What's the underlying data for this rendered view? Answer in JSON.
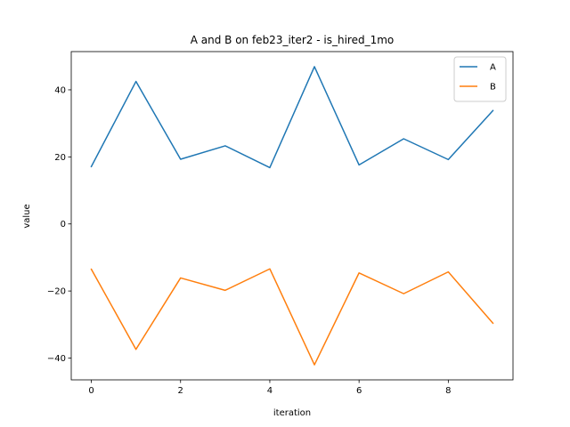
{
  "chart_data": {
    "type": "line",
    "title": "A and B on feb23_iter2 - is_hired_1mo",
    "xlabel": "iteration",
    "ylabel": "value",
    "x": [
      0,
      1,
      2,
      3,
      4,
      5,
      6,
      7,
      8,
      9
    ],
    "xlim": [
      -0.45,
      9.45
    ],
    "ylim": [
      -46.5,
      51.4
    ],
    "xticks": [
      0,
      2,
      4,
      6,
      8
    ],
    "yticks": [
      -40,
      -20,
      0,
      20,
      40
    ],
    "grid": false,
    "legend": "top-right",
    "series": [
      {
        "name": "A",
        "color": "#1f77b4",
        "values": [
          17.1,
          42.5,
          19.3,
          23.3,
          16.8,
          46.9,
          17.6,
          25.4,
          19.2,
          33.8
        ]
      },
      {
        "name": "B",
        "color": "#ff7f0e",
        "values": [
          -13.5,
          -37.4,
          -16.1,
          -19.8,
          -13.4,
          -42.0,
          -14.6,
          -20.8,
          -14.3,
          -29.6
        ]
      }
    ]
  }
}
